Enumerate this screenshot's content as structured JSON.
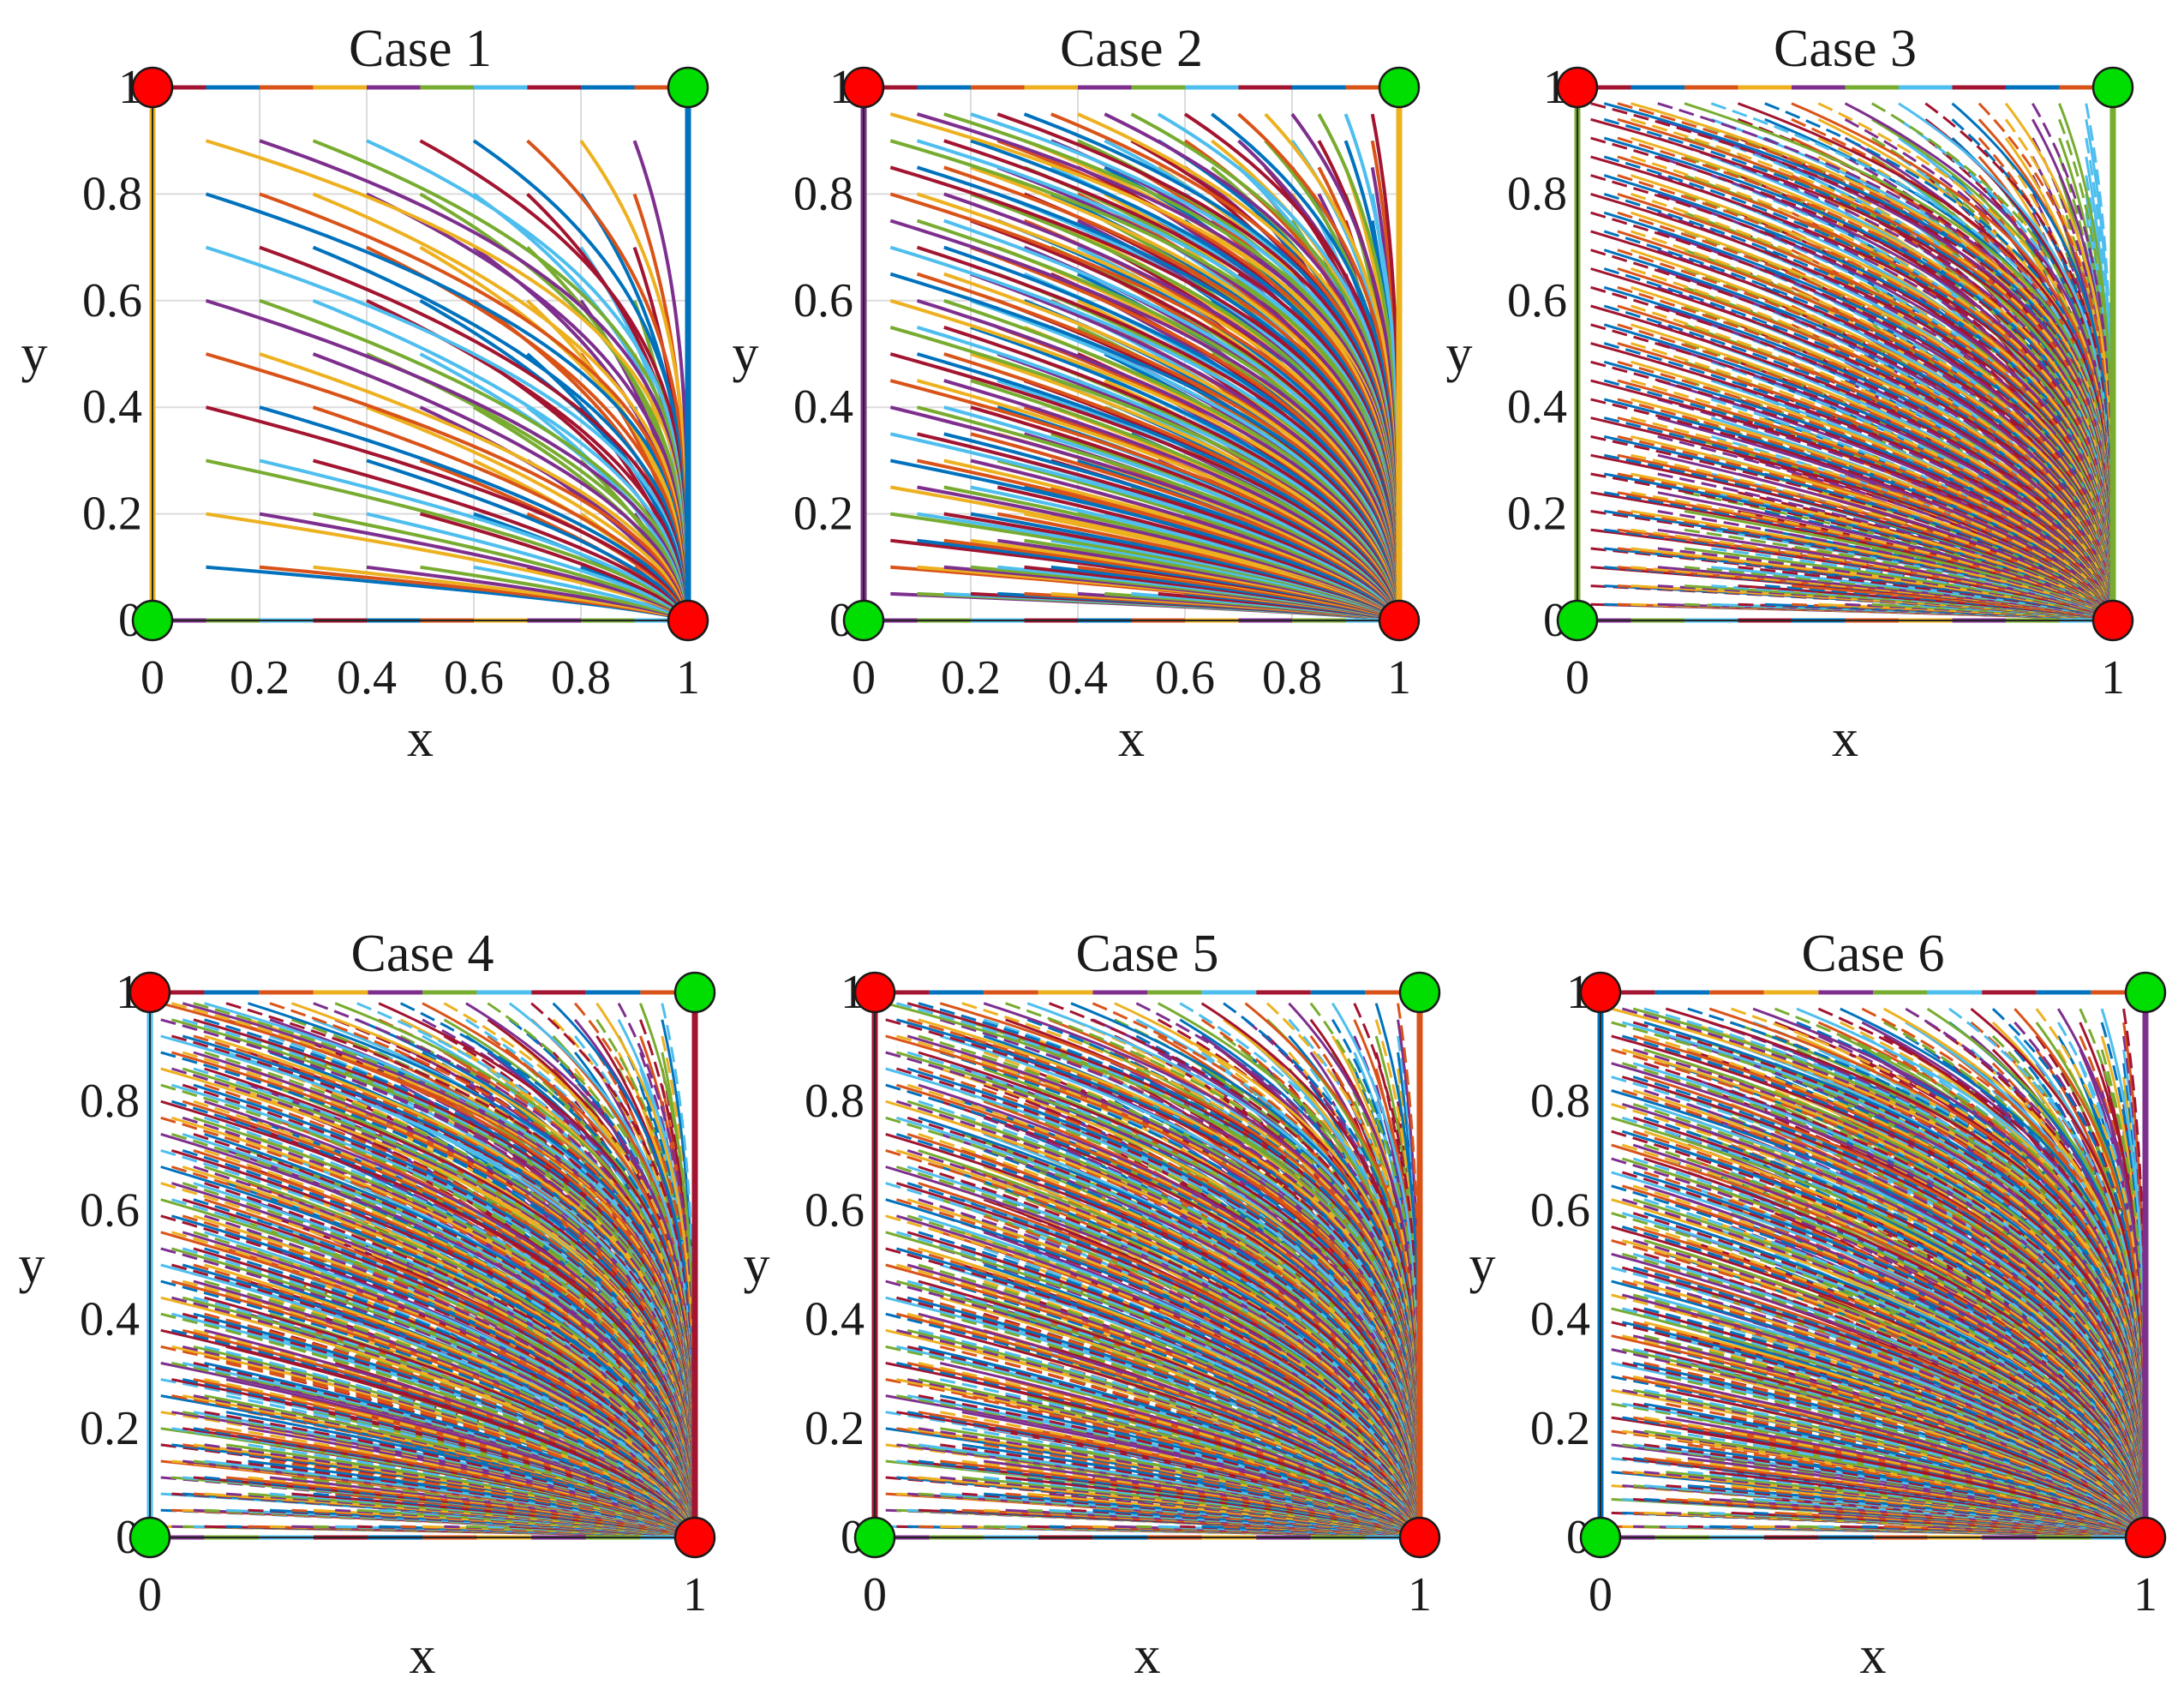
{
  "figure": {
    "description_hidden": true
  },
  "chart_data": [
    {
      "type": "line",
      "title": "Case 1",
      "xlabel": "x",
      "ylabel": "y",
      "xlim": [
        0,
        1
      ],
      "ylim": [
        0,
        1
      ],
      "xticks": [
        "0",
        "0.2",
        "0.4",
        "0.6",
        "0.8",
        "1"
      ],
      "yticks": [
        "0",
        "0.2",
        "0.4",
        "0.6",
        "0.8",
        "1"
      ],
      "grid": true,
      "boundary_dashed": false,
      "trajectory_start_x": [
        0.1,
        0.2,
        0.3,
        0.4,
        0.5,
        0.6,
        0.7,
        0.8,
        0.9
      ],
      "trajectory_start_y": [
        0.1,
        0.2,
        0.3,
        0.4,
        0.5,
        0.6,
        0.7,
        0.8,
        0.9
      ],
      "endpoint_sink": [
        1,
        0
      ],
      "markers": [
        {
          "x": 0,
          "y": 1,
          "color": "red"
        },
        {
          "x": 1,
          "y": 1,
          "color": "green"
        },
        {
          "x": 0,
          "y": 0,
          "color": "green"
        },
        {
          "x": 1,
          "y": 0,
          "color": "red"
        }
      ]
    },
    {
      "type": "line",
      "title": "Case 2",
      "xlabel": "x",
      "ylabel": "y",
      "xlim": [
        0,
        1
      ],
      "ylim": [
        0,
        1
      ],
      "xticks": [
        "0",
        "0.2",
        "0.4",
        "0.6",
        "0.8",
        "1"
      ],
      "yticks": [
        "0",
        "0.2",
        "0.4",
        "0.6",
        "0.8",
        "1"
      ],
      "grid": true,
      "boundary_dashed": false,
      "trajectory_start_x": [
        0.05,
        0.1,
        0.15,
        0.2,
        0.25,
        0.3,
        0.35,
        0.4,
        0.45,
        0.5,
        0.55,
        0.6,
        0.65,
        0.7,
        0.75,
        0.8,
        0.85,
        0.9,
        0.95
      ],
      "trajectory_start_y": [
        0.05,
        0.1,
        0.15,
        0.2,
        0.25,
        0.3,
        0.35,
        0.4,
        0.45,
        0.5,
        0.55,
        0.6,
        0.65,
        0.7,
        0.75,
        0.8,
        0.85,
        0.9,
        0.95
      ],
      "endpoint_sink": [
        1,
        0
      ],
      "markers": [
        {
          "x": 0,
          "y": 1,
          "color": "red"
        },
        {
          "x": 1,
          "y": 1,
          "color": "green"
        },
        {
          "x": 0,
          "y": 0,
          "color": "green"
        },
        {
          "x": 1,
          "y": 0,
          "color": "red"
        }
      ]
    },
    {
      "type": "line",
      "title": "Case 3",
      "xlabel": "x",
      "ylabel": "y",
      "xlim": [
        0,
        1
      ],
      "ylim": [
        0,
        1
      ],
      "xticks": [
        "0",
        "1"
      ],
      "yticks": [
        "0",
        "0.2",
        "0.4",
        "0.6",
        "0.8",
        "1"
      ],
      "grid": false,
      "boundary_dashed": true,
      "trajectory_start_x": [
        0.025,
        0.05,
        0.075,
        0.1,
        0.15,
        0.2,
        0.25,
        0.3,
        0.35,
        0.4,
        0.45,
        0.5,
        0.55,
        0.6,
        0.65,
        0.7,
        0.75,
        0.8,
        0.85,
        0.9,
        0.95
      ],
      "trajectory_start_y": [
        0.03,
        0.065,
        0.1,
        0.135,
        0.17,
        0.205,
        0.24,
        0.275,
        0.31,
        0.345,
        0.38,
        0.415,
        0.45,
        0.485,
        0.52,
        0.555,
        0.59,
        0.625,
        0.66,
        0.695,
        0.73,
        0.765,
        0.8,
        0.835,
        0.87,
        0.905,
        0.94,
        0.97
      ],
      "endpoint_sink": [
        1,
        0
      ],
      "markers": [
        {
          "x": 0,
          "y": 1,
          "color": "red"
        },
        {
          "x": 1,
          "y": 1,
          "color": "green"
        },
        {
          "x": 0,
          "y": 0,
          "color": "green"
        },
        {
          "x": 1,
          "y": 0,
          "color": "red"
        }
      ]
    },
    {
      "type": "line",
      "title": "Case 4",
      "xlabel": "x",
      "ylabel": "y",
      "xlim": [
        0,
        1
      ],
      "ylim": [
        0,
        1
      ],
      "xticks": [
        "0",
        "1"
      ],
      "yticks": [
        "0",
        "0.2",
        "0.4",
        "0.6",
        "0.8",
        "1"
      ],
      "grid": false,
      "boundary_dashed": true,
      "trajectory_start_x": [
        0.02,
        0.04,
        0.06,
        0.08,
        0.1,
        0.14,
        0.18,
        0.22,
        0.26,
        0.3,
        0.34,
        0.38,
        0.42,
        0.46,
        0.5,
        0.54,
        0.58,
        0.62,
        0.66,
        0.7,
        0.74,
        0.78,
        0.82,
        0.86,
        0.9,
        0.94
      ],
      "trajectory_start_y": [
        0.02,
        0.05,
        0.08,
        0.11,
        0.14,
        0.17,
        0.2,
        0.23,
        0.26,
        0.29,
        0.32,
        0.35,
        0.38,
        0.41,
        0.44,
        0.47,
        0.5,
        0.53,
        0.56,
        0.59,
        0.62,
        0.65,
        0.68,
        0.71,
        0.74,
        0.77,
        0.8,
        0.83,
        0.86,
        0.89,
        0.92,
        0.95,
        0.98
      ],
      "endpoint_sink": [
        1,
        0
      ],
      "markers": [
        {
          "x": 0,
          "y": 1,
          "color": "red"
        },
        {
          "x": 1,
          "y": 1,
          "color": "green"
        },
        {
          "x": 0,
          "y": 0,
          "color": "green"
        },
        {
          "x": 1,
          "y": 0,
          "color": "red"
        }
      ]
    },
    {
      "type": "line",
      "title": "Case 5",
      "xlabel": "x",
      "ylabel": "y",
      "xlim": [
        0,
        1
      ],
      "ylim": [
        0,
        1
      ],
      "xticks": [
        "0",
        "1"
      ],
      "yticks": [
        "0",
        "0.2",
        "0.4",
        "0.6",
        "0.8",
        "1"
      ],
      "grid": false,
      "boundary_dashed": true,
      "trajectory_start_x": [
        0.02,
        0.04,
        0.06,
        0.08,
        0.12,
        0.16,
        0.2,
        0.24,
        0.28,
        0.32,
        0.36,
        0.4,
        0.44,
        0.48,
        0.52,
        0.56,
        0.6,
        0.64,
        0.68,
        0.72,
        0.76,
        0.8,
        0.84,
        0.88,
        0.92,
        0.96
      ],
      "trajectory_start_y": [
        0.02,
        0.05,
        0.08,
        0.11,
        0.14,
        0.17,
        0.2,
        0.23,
        0.26,
        0.29,
        0.32,
        0.35,
        0.38,
        0.41,
        0.44,
        0.47,
        0.5,
        0.53,
        0.56,
        0.59,
        0.62,
        0.65,
        0.68,
        0.71,
        0.74,
        0.77,
        0.8,
        0.83,
        0.86,
        0.89,
        0.92,
        0.95,
        0.98
      ],
      "endpoint_sink": [
        1,
        0
      ],
      "markers": [
        {
          "x": 0,
          "y": 1,
          "color": "red"
        },
        {
          "x": 1,
          "y": 1,
          "color": "green"
        },
        {
          "x": 0,
          "y": 0,
          "color": "green"
        },
        {
          "x": 1,
          "y": 0,
          "color": "red"
        }
      ]
    },
    {
      "type": "line",
      "title": "Case 6",
      "xlabel": "x",
      "ylabel": "y",
      "xlim": [
        0,
        1
      ],
      "ylim": [
        0,
        1
      ],
      "xticks": [
        "0",
        "1"
      ],
      "yticks": [
        "0",
        "0.2",
        "0.4",
        "0.6",
        "0.8",
        "1"
      ],
      "grid": false,
      "boundary_dashed": true,
      "trajectory_start_x": [
        0.02,
        0.04,
        0.06,
        0.08,
        0.12,
        0.16,
        0.2,
        0.24,
        0.28,
        0.32,
        0.36,
        0.4,
        0.44,
        0.48,
        0.52,
        0.56,
        0.6,
        0.64,
        0.68,
        0.72,
        0.76,
        0.8,
        0.84,
        0.88,
        0.92,
        0.96
      ],
      "trajectory_start_y": [
        0.02,
        0.045,
        0.07,
        0.095,
        0.12,
        0.145,
        0.17,
        0.195,
        0.22,
        0.245,
        0.27,
        0.295,
        0.32,
        0.345,
        0.37,
        0.395,
        0.42,
        0.445,
        0.47,
        0.495,
        0.52,
        0.545,
        0.57,
        0.595,
        0.62,
        0.645,
        0.67,
        0.695,
        0.72,
        0.745,
        0.77,
        0.795,
        0.82,
        0.845,
        0.87,
        0.895,
        0.92,
        0.945,
        0.97
      ],
      "endpoint_sink": [
        1,
        0
      ],
      "markers": [
        {
          "x": 0,
          "y": 1,
          "color": "red"
        },
        {
          "x": 1,
          "y": 1,
          "color": "green"
        },
        {
          "x": 0,
          "y": 0,
          "color": "green"
        },
        {
          "x": 1,
          "y": 0,
          "color": "red"
        }
      ]
    }
  ],
  "palette": [
    "#0072BD",
    "#D95319",
    "#EDB120",
    "#7E2F8E",
    "#77AC30",
    "#4DBEEE",
    "#A2142F"
  ],
  "marker_colors": {
    "red": "#ff0000",
    "green": "#00dd00"
  }
}
